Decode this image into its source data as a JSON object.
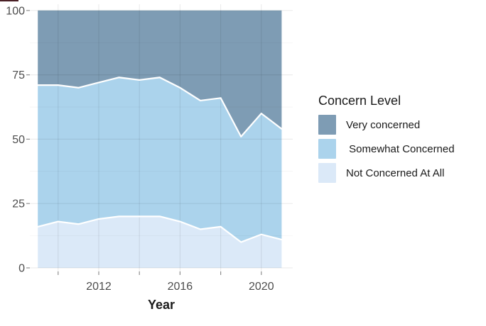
{
  "chart_data": {
    "type": "area",
    "stacked": true,
    "percent_stacked": true,
    "title": "",
    "xlabel": "Year",
    "ylabel": "",
    "x": [
      2009,
      2010,
      2011,
      2012,
      2013,
      2014,
      2015,
      2016,
      2017,
      2018,
      2019,
      2020,
      2021
    ],
    "series": [
      {
        "name": "Not Concerned At All",
        "color": "#dbe9f8",
        "values": [
          16,
          18,
          17,
          19,
          20,
          20,
          20,
          18,
          15,
          16,
          10,
          13,
          11
        ]
      },
      {
        "name": "Somewhat Concerned",
        "color": "#abd3ec",
        "values": [
          55,
          53,
          53,
          53,
          54,
          53,
          54,
          52,
          50,
          50,
          41,
          47,
          43
        ]
      },
      {
        "name": "Very concerned",
        "color": "#7e9cb4",
        "values": [
          29,
          29,
          30,
          28,
          26,
          27,
          26,
          30,
          35,
          34,
          49,
          40,
          46
        ]
      }
    ],
    "ylim": [
      0,
      100
    ],
    "y_ticks": [
      0,
      25,
      50,
      75,
      100
    ],
    "y_minor_gridlines": [
      12.5,
      37.5,
      62.5,
      87.5
    ],
    "x_ticks": [
      {
        "year": 2010,
        "label": ""
      },
      {
        "year": 2012,
        "label": "2012"
      },
      {
        "year": 2014,
        "label": ""
      },
      {
        "year": 2016,
        "label": "2016"
      },
      {
        "year": 2018,
        "label": ""
      },
      {
        "year": 2020,
        "label": "2020"
      }
    ],
    "grid": "horizontal major+minor, vertical at even years",
    "boundary_line_color": "#ffffff",
    "legend_position": "right"
  },
  "legend": {
    "title": "Concern Level",
    "items": [
      {
        "label": "Very concerned",
        "color": "#7e9cb4"
      },
      {
        "label": " Somewhat Concerned",
        "color": "#abd3ec"
      },
      {
        "label": "Not Concerned At All",
        "color": "#dbe9f8"
      }
    ]
  }
}
